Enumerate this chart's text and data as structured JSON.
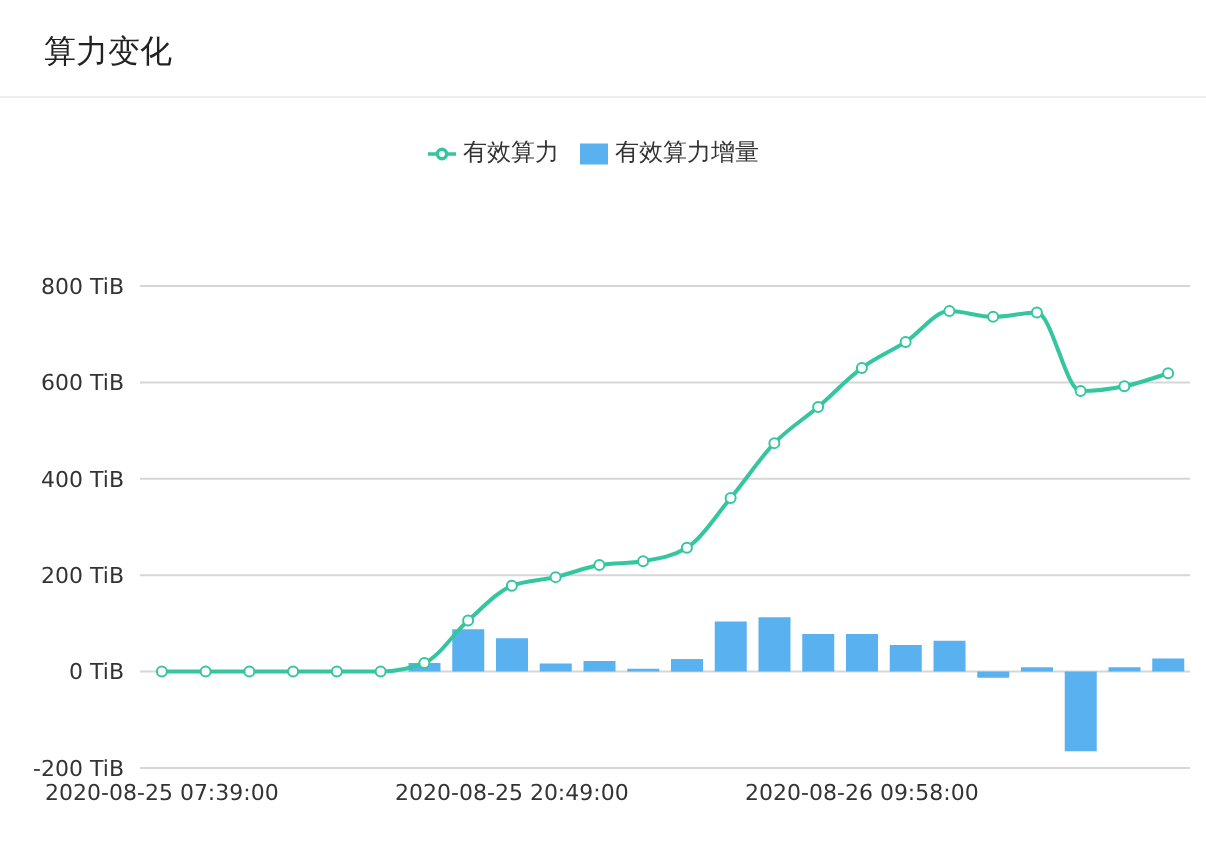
{
  "chart_data": {
    "type": "line",
    "title": "算力变化",
    "categories": [
      "2020-08-25 07:39:00",
      null,
      null,
      null,
      null,
      null,
      null,
      null,
      "2020-08-25 20:49:00",
      null,
      null,
      null,
      null,
      null,
      null,
      null,
      "2020-08-26 09:58:00",
      null,
      null,
      null,
      null,
      null,
      null,
      null
    ],
    "series": [
      {
        "name": "有效算力",
        "color": "#35c6a0",
        "values": [
          0,
          0,
          0,
          0,
          0,
          0,
          18,
          106,
          178,
          196,
          221,
          229,
          257,
          360,
          474,
          549,
          630,
          684,
          748,
          736,
          745,
          582,
          592,
          619
        ]
      },
      {
        "name": "有效算力增量",
        "type": "bar",
        "color": "#5ab1ef",
        "values": [
          0,
          0,
          0,
          0,
          0,
          0,
          18,
          88,
          69,
          17,
          22,
          6,
          26,
          104,
          113,
          78,
          78,
          55,
          64,
          -13,
          9,
          -165,
          9,
          27
        ]
      }
    ],
    "ylim": [
      -200,
      800
    ],
    "yticks": [
      {
        "value": -200,
        "label": "-200 TiB"
      },
      {
        "value": 0,
        "label": "0 TiB"
      },
      {
        "value": 200,
        "label": "200 TiB"
      },
      {
        "value": 400,
        "label": "400 TiB"
      },
      {
        "value": 600,
        "label": "600 TiB"
      },
      {
        "value": 800,
        "label": "800 TiB"
      }
    ],
    "grid": "y",
    "legend": "top",
    "marker": "circle",
    "line_style": "solid"
  }
}
